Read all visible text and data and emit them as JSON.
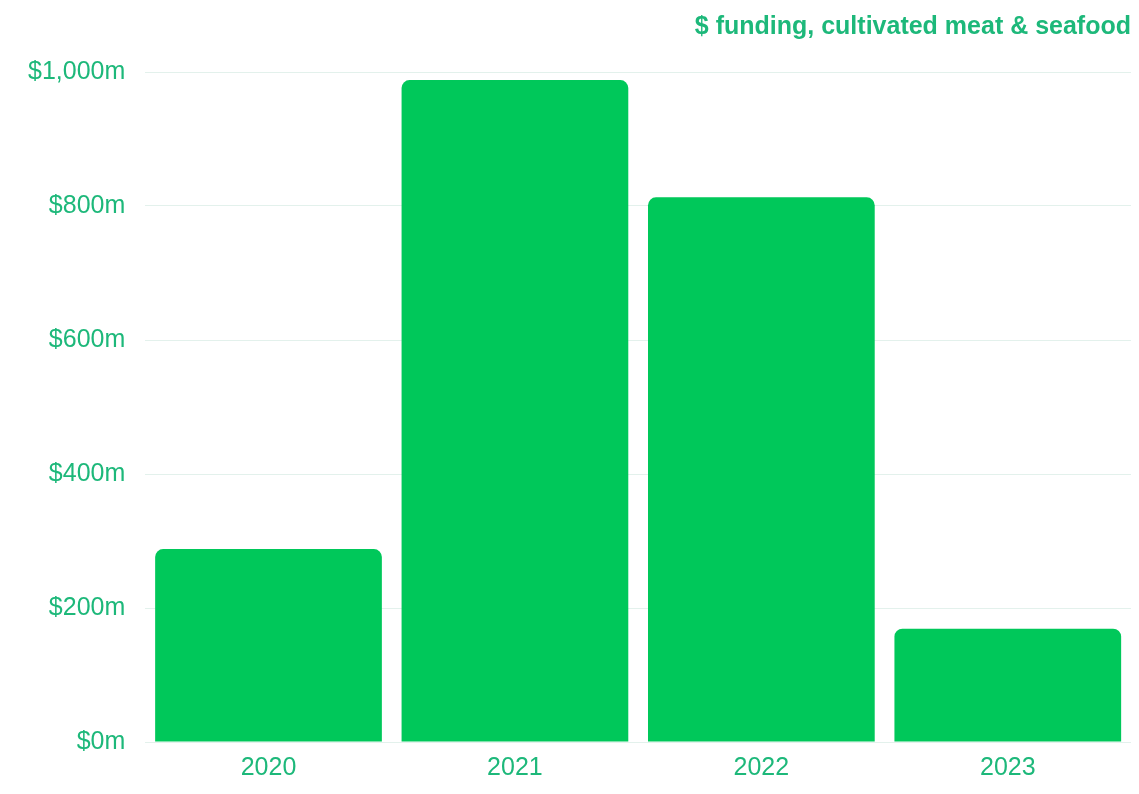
{
  "chart_data": {
    "type": "bar",
    "title": "$ funding, cultivated meat & seafood",
    "categories": [
      "2020",
      "2021",
      "2022",
      "2023"
    ],
    "values": [
      288,
      988,
      813,
      169
    ],
    "color": "#00c85a",
    "ylim": [
      0,
      1000
    ],
    "yticks": [
      {
        "value": 0,
        "label": "$0m"
      },
      {
        "value": 200,
        "label": "$200m"
      },
      {
        "value": 400,
        "label": "$400m"
      },
      {
        "value": 600,
        "label": "$600m"
      },
      {
        "value": 800,
        "label": "$800m"
      },
      {
        "value": 1000,
        "label": "$1,000m"
      }
    ],
    "grid": "y"
  }
}
